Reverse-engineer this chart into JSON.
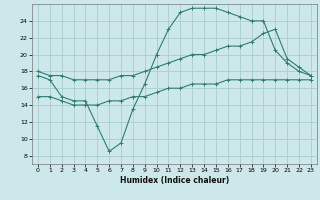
{
  "xlabel": "Humidex (Indice chaleur)",
  "bg_color": "#cce8ea",
  "grid_color": "#aacdd0",
  "line_color": "#2e7d72",
  "xlim": [
    -0.5,
    23.5
  ],
  "ylim": [
    7,
    26
  ],
  "yticks": [
    8,
    10,
    12,
    14,
    16,
    18,
    20,
    22,
    24
  ],
  "xticks": [
    0,
    1,
    2,
    3,
    4,
    5,
    6,
    7,
    8,
    9,
    10,
    11,
    12,
    13,
    14,
    15,
    16,
    17,
    18,
    19,
    20,
    21,
    22,
    23
  ],
  "curve1_x": [
    0,
    1,
    2,
    3,
    4,
    5,
    6,
    7,
    8,
    9,
    10,
    11,
    12,
    13,
    14,
    15,
    16,
    17,
    18,
    19,
    20,
    21,
    22,
    23
  ],
  "curve1_y": [
    17.5,
    17.0,
    15.0,
    14.5,
    14.5,
    11.5,
    8.5,
    9.5,
    13.5,
    16.5,
    20.0,
    23.0,
    25.0,
    25.5,
    25.5,
    25.5,
    25.0,
    24.5,
    24.0,
    24.0,
    20.5,
    19.0,
    18.0,
    17.5
  ],
  "curve2_x": [
    0,
    1,
    2,
    3,
    4,
    5,
    6,
    7,
    8,
    9,
    10,
    11,
    12,
    13,
    14,
    15,
    16,
    17,
    18,
    19,
    20,
    21,
    22,
    23
  ],
  "curve2_y": [
    18.0,
    17.5,
    17.5,
    17.0,
    17.0,
    17.0,
    17.0,
    17.5,
    17.5,
    18.0,
    18.5,
    19.0,
    19.5,
    20.0,
    20.0,
    20.5,
    21.0,
    21.0,
    21.5,
    22.5,
    23.0,
    19.5,
    18.5,
    17.5
  ],
  "curve3_x": [
    0,
    1,
    2,
    3,
    4,
    5,
    6,
    7,
    8,
    9,
    10,
    11,
    12,
    13,
    14,
    15,
    16,
    17,
    18,
    19,
    20,
    21,
    22,
    23
  ],
  "curve3_y": [
    15.0,
    15.0,
    14.5,
    14.0,
    14.0,
    14.0,
    14.5,
    14.5,
    15.0,
    15.0,
    15.5,
    16.0,
    16.0,
    16.5,
    16.5,
    16.5,
    17.0,
    17.0,
    17.0,
    17.0,
    17.0,
    17.0,
    17.0,
    17.0
  ]
}
